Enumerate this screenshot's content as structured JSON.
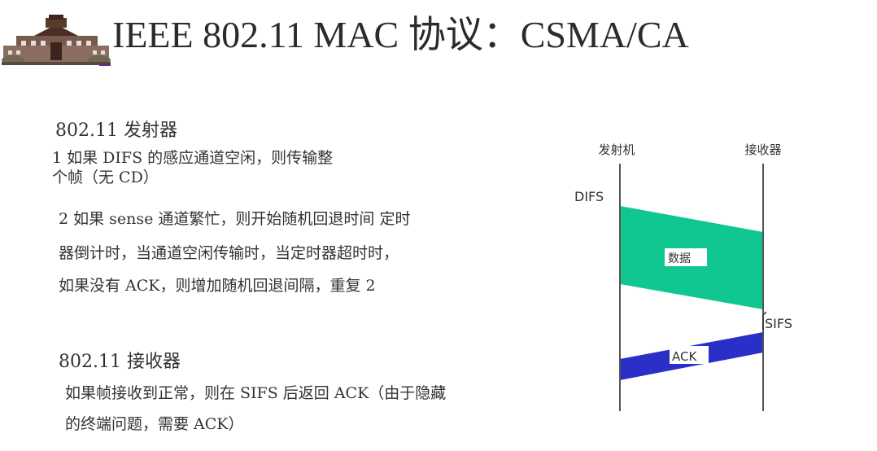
{
  "header": {
    "title": "IEEE 802.11 MAC 协议：CSMA/CA"
  },
  "sender": {
    "heading": "802.11 发射器",
    "rule1_line1": "1 如果 DIFS 的感应通道空闲，则传输整",
    "rule1_line2": "个帧（无 CD）",
    "rule2_line1": "2 如果 sense 通道繁忙，则开始随机回退时间 定时",
    "rule2_line2": "器倒计时，当通道空闲传输时，当定时器超时时，",
    "rule2_line3": "如果没有 ACK，则增加随机回退间隔，重复 2"
  },
  "receiver": {
    "heading": "802.11 接收器",
    "rule_line1": "如果帧接收到正常，则在 SIFS 后返回 ACK（由于隐藏",
    "rule_line2": "的终端问题，需要 ACK）"
  },
  "diagram": {
    "sender_label": "发射机",
    "receiver_label": "接收器",
    "difs_label": "DIFS",
    "data_label": "数据",
    "sifs_label": "SIFS",
    "ack_label": "ACK",
    "colors": {
      "data": "#11c791",
      "ack": "#2a2fc8",
      "timeline": "#555555"
    }
  }
}
